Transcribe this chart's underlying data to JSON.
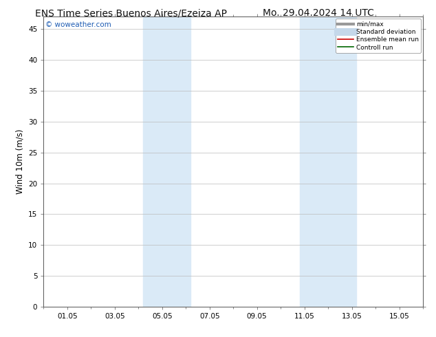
{
  "title_left": "ENS Time Series Buenos Aires/Ezeiza AP",
  "title_right": "Mo. 29.04.2024 14 UTC",
  "ylabel": "Wind 10m (m/s)",
  "ylim_min": 0,
  "ylim_max": 47,
  "yticks": [
    0,
    5,
    10,
    15,
    20,
    25,
    30,
    35,
    40,
    45
  ],
  "xtick_labels": [
    "01.05",
    "03.05",
    "05.05",
    "07.05",
    "09.05",
    "11.05",
    "13.05",
    "15.05"
  ],
  "xtick_positions": [
    1,
    3,
    5,
    7,
    9,
    11,
    13,
    15
  ],
  "xlim_min": 0,
  "xlim_max": 16,
  "shaded_bands": [
    {
      "x_start": 4.2,
      "x_end": 6.2
    },
    {
      "x_start": 10.8,
      "x_end": 13.2
    }
  ],
  "shaded_color": "#daeaf7",
  "watermark_text": "© woweather.com",
  "watermark_color": "#1e5cb3",
  "legend_entries": [
    {
      "label": "min/max",
      "color": "#999999",
      "lw": 3
    },
    {
      "label": "Standard deviation",
      "color": "#c5d8ea",
      "lw": 8
    },
    {
      "label": "Ensemble mean run",
      "color": "#cc0000",
      "lw": 1.2
    },
    {
      "label": "Controll run",
      "color": "#006600",
      "lw": 1.2
    }
  ],
  "background_color": "#ffffff",
  "grid_color": "#bbbbbb",
  "title_fontsize": 10,
  "tick_fontsize": 7.5,
  "ylabel_fontsize": 8.5,
  "watermark_fontsize": 7.5,
  "legend_fontsize": 6.5
}
